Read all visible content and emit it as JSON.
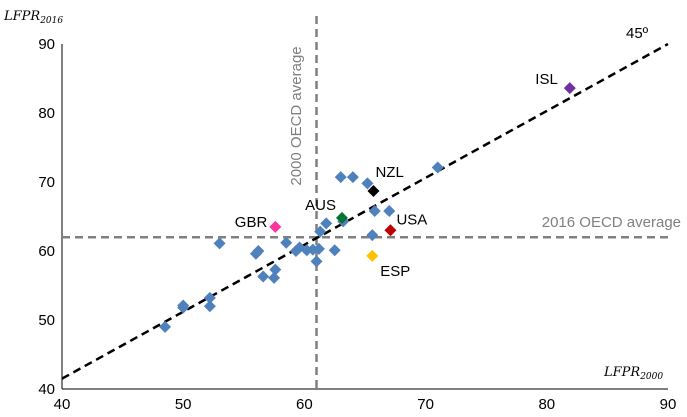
{
  "chart_data": {
    "type": "scatter",
    "title": "",
    "xlabel": {
      "main": "LFPR",
      "sub": "2000"
    },
    "ylabel": {
      "main": "LFPR",
      "sub": "2016"
    },
    "xlim": [
      40,
      90
    ],
    "ylim": [
      40,
      90
    ],
    "xticks": [
      "40",
      "50",
      "60",
      "70",
      "80",
      "90"
    ],
    "yticks": [
      "40",
      "50",
      "60",
      "70",
      "80",
      "90"
    ],
    "grid": false,
    "legend": "none",
    "reference_lines": {
      "diagonal": {
        "label": "45º",
        "from": [
          40,
          41.5
        ],
        "to": [
          90,
          90
        ]
      },
      "vertical": {
        "label": "2000 OECD average",
        "x": 61
      },
      "horizontal": {
        "label": "2016 OECD average",
        "y": 62
      }
    },
    "default_color": "#4F81BD",
    "points": [
      {
        "x": 48.5,
        "y": 49.0
      },
      {
        "x": 50.0,
        "y": 51.8
      },
      {
        "x": 50.0,
        "y": 52.1
      },
      {
        "x": 52.2,
        "y": 52.0
      },
      {
        "x": 52.2,
        "y": 53.2
      },
      {
        "x": 53.0,
        "y": 61.1
      },
      {
        "x": 56.0,
        "y": 59.6
      },
      {
        "x": 56.2,
        "y": 60.0
      },
      {
        "x": 56.6,
        "y": 56.3
      },
      {
        "x": 57.5,
        "y": 56.1
      },
      {
        "x": 57.6,
        "y": 57.3
      },
      {
        "x": 58.5,
        "y": 61.2
      },
      {
        "x": 59.3,
        "y": 60.0
      },
      {
        "x": 59.6,
        "y": 60.5
      },
      {
        "x": 60.2,
        "y": 60.1
      },
      {
        "x": 60.7,
        "y": 60.2
      },
      {
        "x": 61.0,
        "y": 58.5
      },
      {
        "x": 61.2,
        "y": 60.3
      },
      {
        "x": 61.3,
        "y": 62.8
      },
      {
        "x": 61.8,
        "y": 64.0
      },
      {
        "x": 62.5,
        "y": 60.1
      },
      {
        "x": 63.0,
        "y": 70.7
      },
      {
        "x": 63.2,
        "y": 64.3
      },
      {
        "x": 64.0,
        "y": 70.7
      },
      {
        "x": 65.2,
        "y": 69.8
      },
      {
        "x": 65.6,
        "y": 62.3
      },
      {
        "x": 65.8,
        "y": 65.8
      },
      {
        "x": 67.0,
        "y": 65.8
      },
      {
        "x": 71.0,
        "y": 72.1
      },
      {
        "x": 81.9,
        "y": 83.6,
        "label": "ISL",
        "color": "#7030A0"
      },
      {
        "x": 65.7,
        "y": 68.7,
        "label": "NZL",
        "color": "#000000"
      },
      {
        "x": 63.1,
        "y": 64.8,
        "label": "AUS",
        "color": "#00752F"
      },
      {
        "x": 67.1,
        "y": 63.0,
        "label": "USA",
        "color": "#C00000"
      },
      {
        "x": 57.6,
        "y": 63.5,
        "label": "GBR",
        "color": "#FF3399"
      },
      {
        "x": 65.6,
        "y": 59.3,
        "label": "ESP",
        "color": "#FFC000"
      }
    ]
  }
}
